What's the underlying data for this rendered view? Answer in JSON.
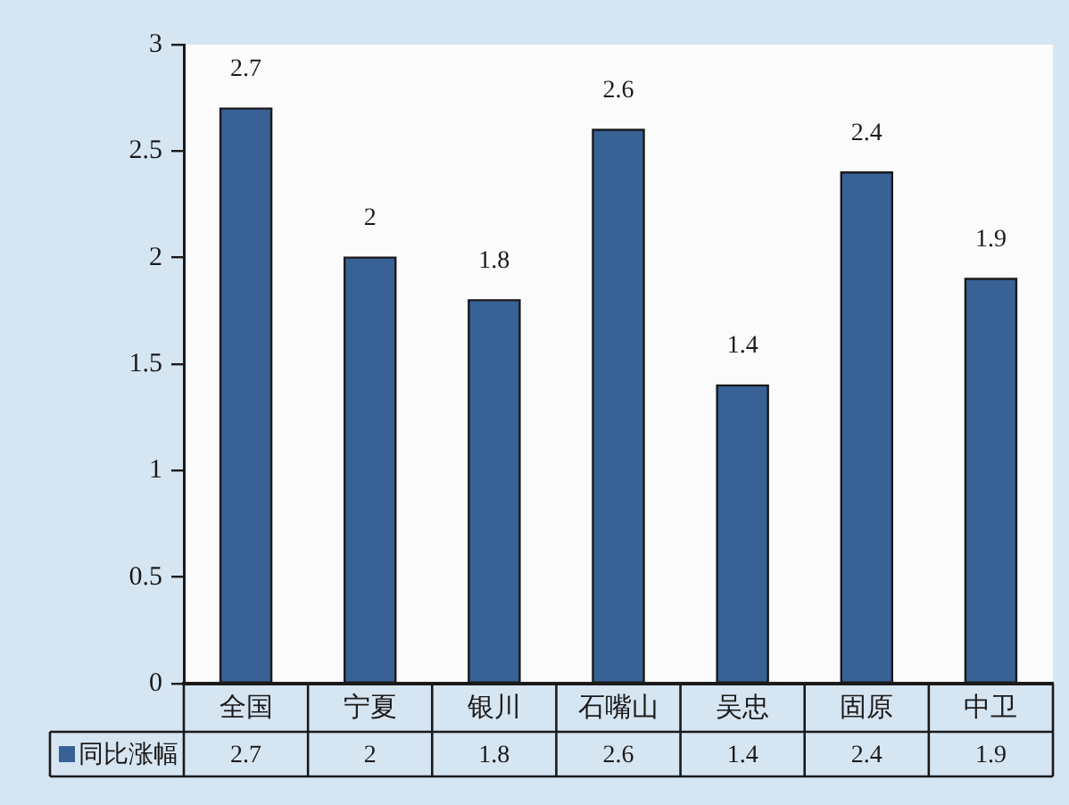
{
  "chart_data": {
    "type": "bar",
    "categories": [
      "全国",
      "宁夏",
      "银川",
      "石嘴山",
      "吴忠",
      "固原",
      "中卫"
    ],
    "series": [
      {
        "name": "同比涨幅",
        "color": "#386196",
        "values": [
          2.7,
          2,
          1.8,
          2.6,
          1.4,
          2.4,
          1.9
        ]
      }
    ],
    "ylim": [
      0,
      3
    ],
    "yticks": [
      0,
      0.5,
      1,
      1.5,
      2,
      2.5,
      3
    ],
    "grid": false,
    "legend": "bottom left",
    "data_labels": true,
    "annotations": [
      "2.7",
      "2",
      "1.8",
      "2.6",
      "1.4",
      "2.4",
      "1.9"
    ]
  }
}
